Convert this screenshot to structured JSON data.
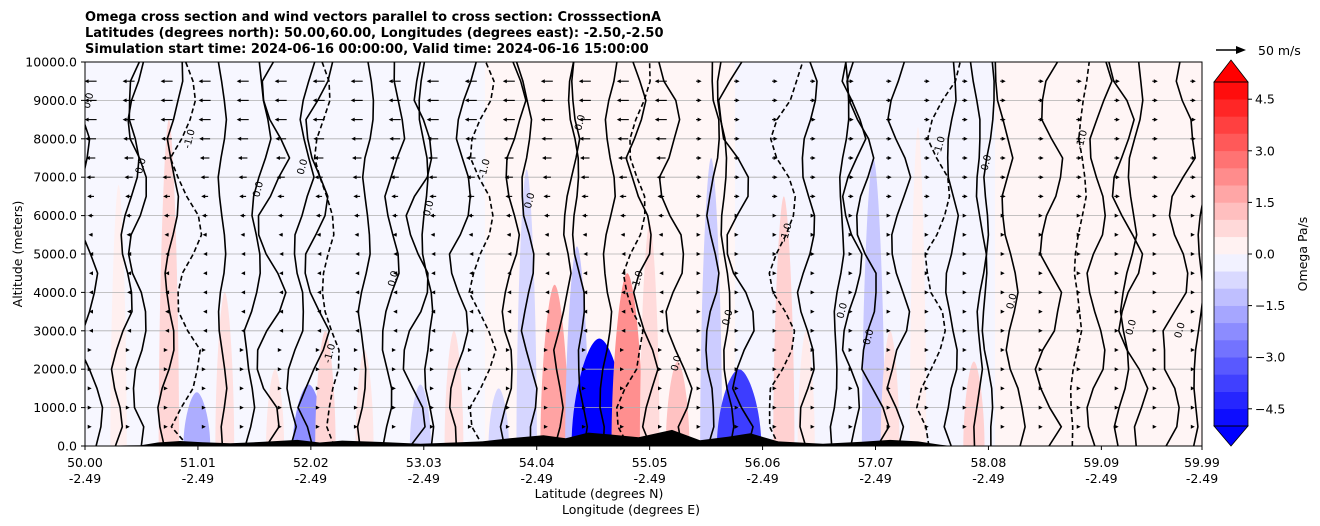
{
  "chart_data": {
    "type": "contour",
    "title_lines": [
      "Omega cross section and wind vectors parallel to cross section: CrosssectionA",
      "Latitudes (degrees north): 50.00,60.00, Longitudes (degrees east): -2.50,-2.50",
      "Simulation start time: 2024-06-16 00:00:00, Valid time: 2024-06-16 15:00:00"
    ],
    "ylabel": "Altitude (meters)",
    "xlabel_lines": [
      "Latitude (degrees N)",
      "Longitude (degrees E)"
    ],
    "ylim": [
      0,
      10000
    ],
    "xlim": [
      50.0,
      59.99
    ],
    "y_ticks": [
      {
        "value": 0,
        "label": "0.0"
      },
      {
        "value": 1000,
        "label": "1000.0"
      },
      {
        "value": 2000,
        "label": "2000.0"
      },
      {
        "value": 3000,
        "label": "3000.0"
      },
      {
        "value": 4000,
        "label": "4000.0"
      },
      {
        "value": 5000,
        "label": "5000.0"
      },
      {
        "value": 6000,
        "label": "6000.0"
      },
      {
        "value": 7000,
        "label": "7000.0"
      },
      {
        "value": 8000,
        "label": "8000.0"
      },
      {
        "value": 9000,
        "label": "9000.0"
      },
      {
        "value": 10000,
        "label": "10000.0"
      }
    ],
    "x_ticks": [
      {
        "value": 50.0,
        "lat": "50.00",
        "lon": "-2.49"
      },
      {
        "value": 51.01,
        "lat": "51.01",
        "lon": "-2.49"
      },
      {
        "value": 52.02,
        "lat": "52.02",
        "lon": "-2.49"
      },
      {
        "value": 53.03,
        "lat": "53.03",
        "lon": "-2.49"
      },
      {
        "value": 54.04,
        "lat": "54.04",
        "lon": "-2.49"
      },
      {
        "value": 55.05,
        "lat": "55.05",
        "lon": "-2.49"
      },
      {
        "value": 56.06,
        "lat": "56.06",
        "lon": "-2.49"
      },
      {
        "value": 57.07,
        "lat": "57.07",
        "lon": "-2.49"
      },
      {
        "value": 58.08,
        "lat": "58.08",
        "lon": "-2.49"
      },
      {
        "value": 59.09,
        "lat": "59.09",
        "lon": "-2.49"
      },
      {
        "value": 59.99,
        "lat": "59.99",
        "lon": "-2.49"
      }
    ],
    "colorbar": {
      "label": "Omega Pa/s",
      "min": -5.0,
      "max": 5.0,
      "ticks": [
        {
          "value": 4.5,
          "label": "4.5"
        },
        {
          "value": 3.0,
          "label": "3.0"
        },
        {
          "value": 1.5,
          "label": "1.5"
        },
        {
          "value": 0.0,
          "label": "0.0"
        },
        {
          "value": -1.5,
          "label": "−1.5"
        },
        {
          "value": -3.0,
          "label": "−3.0"
        },
        {
          "value": -4.5,
          "label": "−4.5"
        }
      ],
      "extend": "both",
      "positive_color": "#ff0000",
      "negative_color": "#0000ff"
    },
    "vector_key": {
      "label": "50 m/s",
      "speed": 50
    },
    "grid": "horizontal",
    "filled_regions": [
      {
        "lat": 50.3,
        "alt_top": 6800,
        "omega": 0.3
      },
      {
        "lat": 50.75,
        "alt_top": 8500,
        "omega": 0.8
      },
      {
        "lat": 51.0,
        "alt_top": 1400,
        "omega": -1.6
      },
      {
        "lat": 51.25,
        "alt_top": 4000,
        "omega": 0.6
      },
      {
        "lat": 51.7,
        "alt_top": 2000,
        "omega": 0.5
      },
      {
        "lat": 52.0,
        "alt_top": 1600,
        "omega": -2.2
      },
      {
        "lat": 52.15,
        "alt_top": 3000,
        "omega": 0.8
      },
      {
        "lat": 52.5,
        "alt_top": 2500,
        "omega": 0.5
      },
      {
        "lat": 53.0,
        "alt_top": 1600,
        "omega": -0.9
      },
      {
        "lat": 53.3,
        "alt_top": 3000,
        "omega": 0.6
      },
      {
        "lat": 53.7,
        "alt_top": 1500,
        "omega": -0.8
      },
      {
        "lat": 53.95,
        "alt_top": 7200,
        "omega": -0.8
      },
      {
        "lat": 54.2,
        "alt_top": 4200,
        "omega": 1.8
      },
      {
        "lat": 54.4,
        "alt_top": 5200,
        "omega": -1.2
      },
      {
        "lat": 54.6,
        "alt_top": 2800,
        "omega": -5.2
      },
      {
        "lat": 54.85,
        "alt_top": 4500,
        "omega": 2.2
      },
      {
        "lat": 55.05,
        "alt_top": 5800,
        "omega": 0.7
      },
      {
        "lat": 55.3,
        "alt_top": 2200,
        "omega": 1.2
      },
      {
        "lat": 55.6,
        "alt_top": 7500,
        "omega": -1.0
      },
      {
        "lat": 55.85,
        "alt_top": 2000,
        "omega": -3.8
      },
      {
        "lat": 56.25,
        "alt_top": 6500,
        "omega": 0.9
      },
      {
        "lat": 56.45,
        "alt_top": 3000,
        "omega": 0.4
      },
      {
        "lat": 57.05,
        "alt_top": 7500,
        "omega": -1.1
      },
      {
        "lat": 57.2,
        "alt_top": 3000,
        "omega": 0.6
      },
      {
        "lat": 57.45,
        "alt_top": 8300,
        "omega": 0.3
      },
      {
        "lat": 57.95,
        "alt_top": 2200,
        "omega": 0.9
      },
      {
        "lat": 58.6,
        "alt_top": 7600,
        "omega": 0.2
      }
    ],
    "terrain": [
      {
        "lat": 50.0,
        "alt": 0
      },
      {
        "lat": 50.5,
        "alt": 20
      },
      {
        "lat": 50.65,
        "alt": 90
      },
      {
        "lat": 50.85,
        "alt": 130
      },
      {
        "lat": 51.05,
        "alt": 100
      },
      {
        "lat": 51.3,
        "alt": 70
      },
      {
        "lat": 51.6,
        "alt": 110
      },
      {
        "lat": 51.9,
        "alt": 160
      },
      {
        "lat": 52.1,
        "alt": 90
      },
      {
        "lat": 52.3,
        "alt": 140
      },
      {
        "lat": 52.7,
        "alt": 100
      },
      {
        "lat": 53.0,
        "alt": 60
      },
      {
        "lat": 53.3,
        "alt": 90
      },
      {
        "lat": 53.55,
        "alt": 120
      },
      {
        "lat": 53.8,
        "alt": 200
      },
      {
        "lat": 54.1,
        "alt": 280
      },
      {
        "lat": 54.3,
        "alt": 200
      },
      {
        "lat": 54.5,
        "alt": 350
      },
      {
        "lat": 54.7,
        "alt": 300
      },
      {
        "lat": 54.95,
        "alt": 230
      },
      {
        "lat": 55.25,
        "alt": 420
      },
      {
        "lat": 55.5,
        "alt": 150
      },
      {
        "lat": 55.75,
        "alt": 240
      },
      {
        "lat": 55.95,
        "alt": 330
      },
      {
        "lat": 56.2,
        "alt": 120
      },
      {
        "lat": 56.6,
        "alt": 60
      },
      {
        "lat": 56.95,
        "alt": 110
      },
      {
        "lat": 57.2,
        "alt": 160
      },
      {
        "lat": 57.45,
        "alt": 120
      },
      {
        "lat": 57.65,
        "alt": 30
      },
      {
        "lat": 57.75,
        "alt": 0
      },
      {
        "lat": 59.99,
        "alt": 0
      }
    ],
    "contour_levels": [
      -1.0,
      0.0,
      1.0
    ]
  }
}
